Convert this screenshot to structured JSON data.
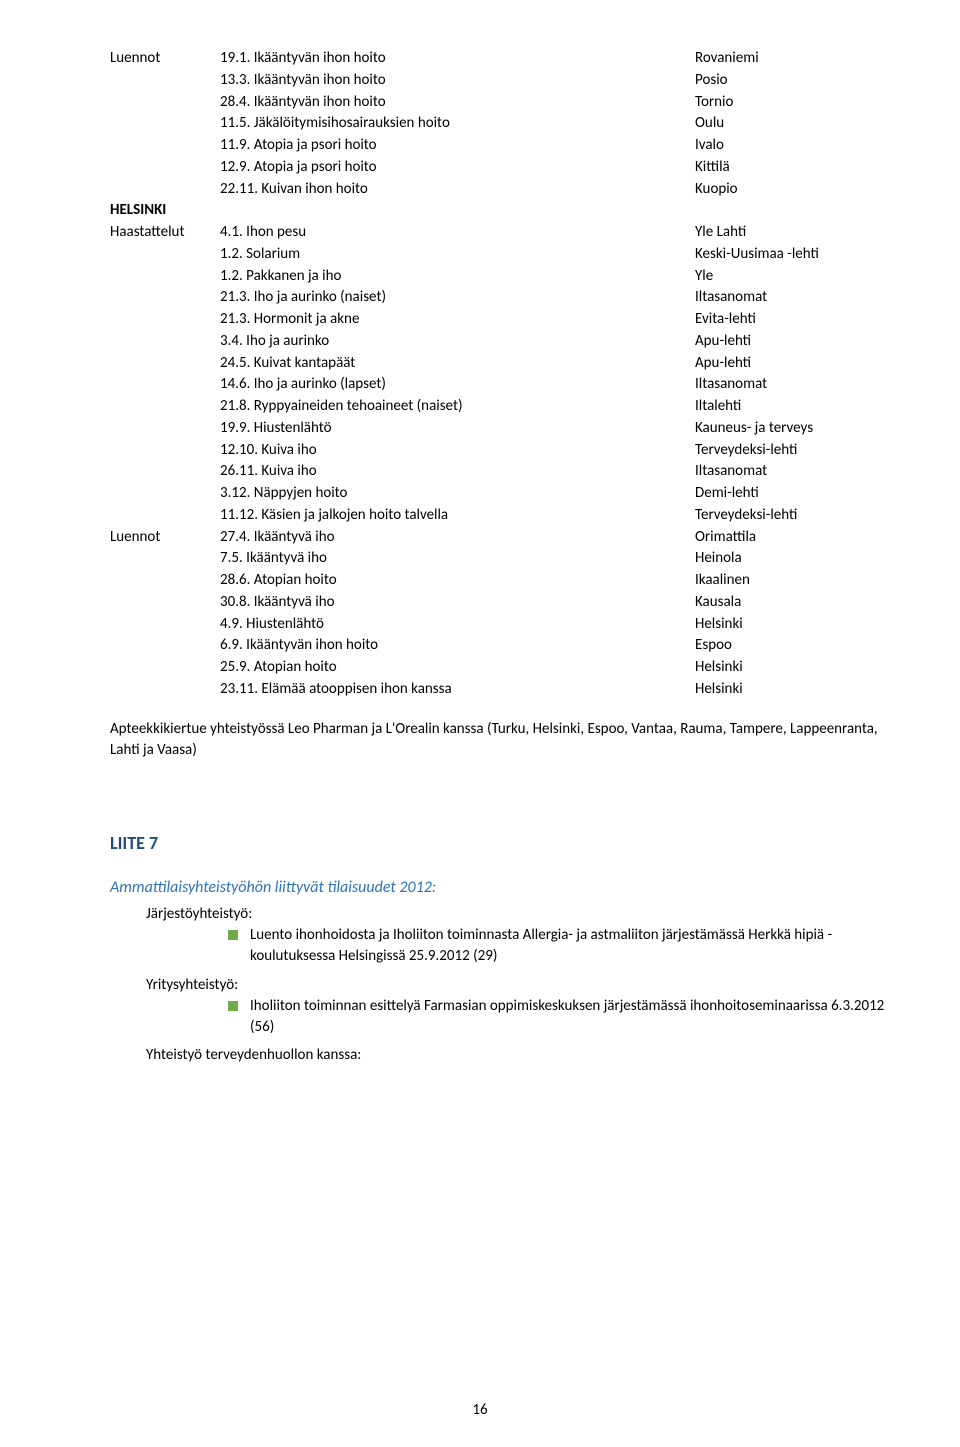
{
  "colors": {
    "text": "#000000",
    "bg": "#ffffff",
    "liite_heading": "#1f4e79",
    "sub_italic": "#2e74b5",
    "bullet": "#70ad47"
  },
  "section1": {
    "label_luennot": "Luennot",
    "label_helsinki": "HELSINKI",
    "label_haastattelut": "Haastattelut",
    "label_luennot2": "Luennot",
    "rows": [
      {
        "label": "Luennot",
        "item": "19.1. Ikääntyvän ihon hoito",
        "place": "Rovaniemi"
      },
      {
        "label": "",
        "item": "13.3. Ikääntyvän ihon hoito",
        "place": "Posio"
      },
      {
        "label": "",
        "item": "28.4. Ikääntyvän ihon hoito",
        "place": "Tornio"
      },
      {
        "label": "",
        "item": "11.5. Jäkälöitymisihosairauksien hoito",
        "place": "Oulu"
      },
      {
        "label": "",
        "item": "11.9. Atopia ja psori hoito",
        "place": "Ivalo"
      },
      {
        "label": "",
        "item": "12.9. Atopia ja psori hoito",
        "place": "Kittilä"
      },
      {
        "label": "",
        "item": "22.11. Kuivan ihon hoito",
        "place": "Kuopio"
      }
    ],
    "rows2": [
      {
        "label": "Haastattelut",
        "item": "4.1. Ihon pesu",
        "place": "Yle Lahti"
      },
      {
        "label": "",
        "item": "1.2. Solarium",
        "place": "Keski-Uusimaa -lehti"
      },
      {
        "label": "",
        "item": "1.2. Pakkanen ja iho",
        "place": "Yle"
      },
      {
        "label": "",
        "item": "21.3. Iho ja aurinko (naiset)",
        "place": "Iltasanomat"
      },
      {
        "label": "",
        "item": "21.3. Hormonit ja akne",
        "place": "Evita-lehti"
      },
      {
        "label": "",
        "item": "3.4. Iho ja aurinko",
        "place": "Apu-lehti"
      },
      {
        "label": "",
        "item": "24.5. Kuivat kantapäät",
        "place": "Apu-lehti"
      },
      {
        "label": "",
        "item": "14.6. Iho ja aurinko (lapset)",
        "place": "Iltasanomat"
      },
      {
        "label": "",
        "item": "21.8. Ryppyaineiden tehoaineet (naiset)",
        "place": "Iltalehti"
      },
      {
        "label": "",
        "item": "19.9. Hiustenlähtö",
        "place": "Kauneus- ja terveys"
      },
      {
        "label": "",
        "item": "12.10. Kuiva iho",
        "place": "Terveydeksi-lehti"
      },
      {
        "label": "",
        "item": "26.11. Kuiva iho",
        "place": "Iltasanomat"
      },
      {
        "label": "",
        "item": "3.12. Näppyjen hoito",
        "place": "Demi-lehti"
      },
      {
        "label": "",
        "item": "11.12. Käsien ja jalkojen hoito talvella",
        "place": "Terveydeksi-lehti"
      }
    ],
    "rows3": [
      {
        "label": "Luennot",
        "item": "27.4. Ikääntyvä iho",
        "place": "Orimattila"
      },
      {
        "label": "",
        "item": "7.5. Ikääntyvä iho",
        "place": "Heinola"
      },
      {
        "label": "",
        "item": "28.6. Atopian hoito",
        "place": "Ikaalinen"
      },
      {
        "label": "",
        "item": "30.8. Ikääntyvä iho",
        "place": "Kausala"
      },
      {
        "label": "",
        "item": "4.9. Hiustenlähtö",
        "place": "Helsinki"
      },
      {
        "label": "",
        "item": "6.9. Ikääntyvän ihon hoito",
        "place": "Espoo"
      },
      {
        "label": "",
        "item": "25.9. Atopian hoito",
        "place": "Helsinki"
      },
      {
        "label": "",
        "item": "23.11. Elämää atooppisen ihon kanssa",
        "place": "Helsinki"
      }
    ]
  },
  "paragraph": "Apteekkikiertue yhteistyössä Leo Pharman ja L'Orealin kanssa (Turku, Helsinki, Espoo, Vantaa, Rauma, Tampere, Lappeenranta, Lahti ja Vaasa)",
  "liite": {
    "title": "LIITE 7",
    "subheading": "Ammattilaisyhteistyöhön liittyvät tilaisuudet 2012:",
    "group1_title": "Järjestöyhteistyö:",
    "group1_bullet": "Luento ihonhoidosta ja Iholiiton toiminnasta Allergia- ja astmaliiton järjestämässä Herkkä hipiä -koulutuksessa Helsingissä 25.9.2012 (29)",
    "group2_title": "Yritysyhteistyö:",
    "group2_bullet": "Iholiiton toiminnan esittelyä Farmasian oppimiskeskuksen järjestämässä ihonhoitoseminaarissa 6.3.2012 (56)",
    "group3_title": "Yhteistyö terveydenhuollon kanssa:"
  },
  "page_number": "16"
}
